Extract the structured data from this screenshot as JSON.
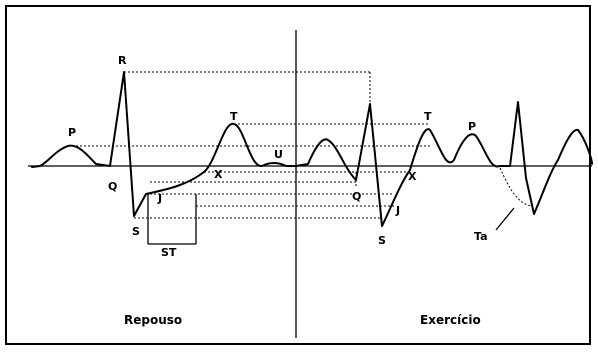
{
  "labels": {
    "P_rest": "P",
    "R_rest": "R",
    "Q_rest": "Q",
    "S_rest": "S",
    "J_rest": "J",
    "X_rest": "X",
    "T_rest": "T",
    "U_rest": "U",
    "ST": "ST",
    "Q_ex": "Q",
    "S_ex": "S",
    "J_ex": "J",
    "X_ex": "X",
    "T_ex": "T",
    "P_ex": "P",
    "Ta": "Ta",
    "rest_caption": "Repouso",
    "exercise_caption": "Exercício"
  },
  "colors": {
    "ink": "#000000",
    "background": "#ffffff"
  }
}
